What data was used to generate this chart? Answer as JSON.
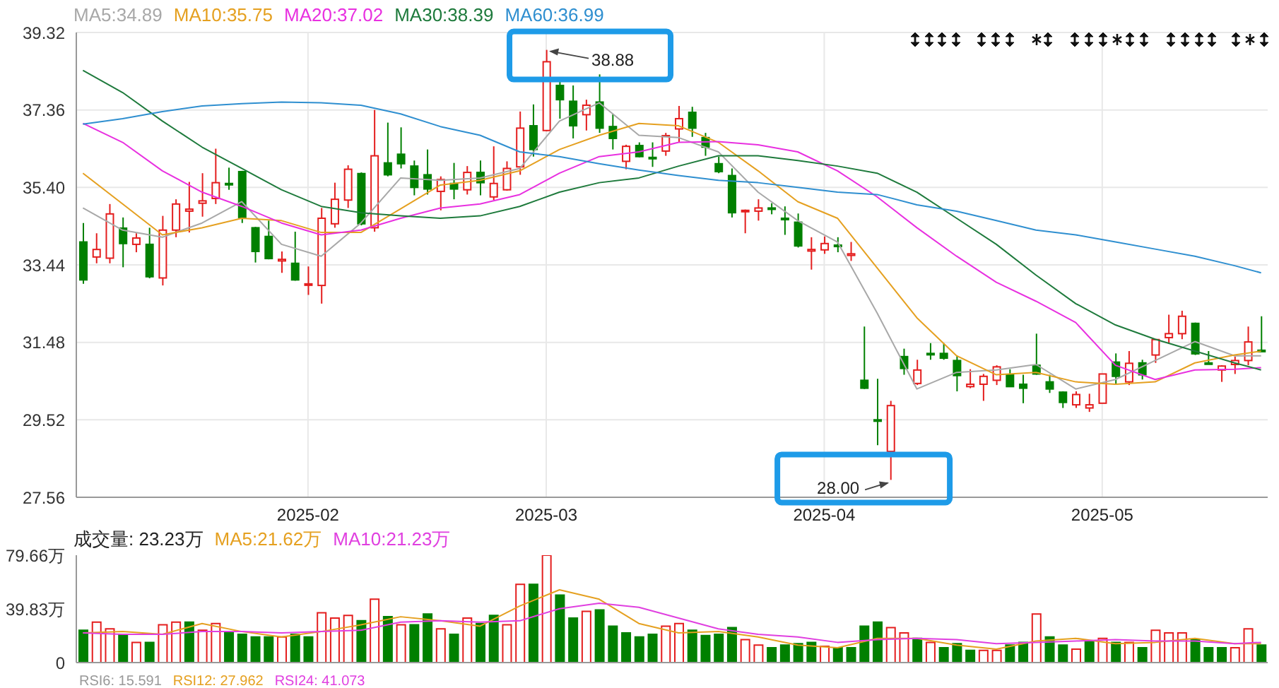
{
  "chart_data": [
    {
      "type": "candlestick",
      "categories": [
        null,
        null,
        null,
        null,
        null,
        null,
        null,
        null,
        null,
        null,
        null,
        null,
        null,
        null,
        null,
        null,
        null,
        "2025-02",
        null,
        null,
        null,
        null,
        null,
        null,
        null,
        null,
        null,
        null,
        null,
        null,
        null,
        null,
        null,
        null,
        null,
        "2025-03",
        null,
        null,
        null,
        null,
        null,
        null,
        null,
        null,
        null,
        null,
        null,
        null,
        null,
        null,
        null,
        null,
        null,
        null,
        null,
        null,
        "2025-04",
        null,
        null,
        null,
        null,
        null,
        null,
        null,
        null,
        null,
        null,
        null,
        null,
        null,
        null,
        null,
        null,
        null,
        null,
        null,
        null,
        "2025-05",
        null,
        null,
        null,
        null,
        null,
        null,
        null,
        null,
        null,
        null,
        null,
        null
      ],
      "ohlc": [
        [
          34.02,
          34.5,
          32.96,
          33.06
        ],
        [
          33.64,
          34.24,
          33.48,
          33.83
        ],
        [
          33.61,
          34.98,
          33.48,
          34.73
        ],
        [
          34.37,
          34.64,
          33.38,
          33.98
        ],
        [
          33.96,
          34.24,
          33.76,
          34.12
        ],
        [
          33.96,
          34.38,
          33.1,
          33.14
        ],
        [
          33.11,
          34.68,
          32.92,
          34.32
        ],
        [
          34.32,
          35.1,
          34.14,
          34.98
        ],
        [
          34.8,
          35.54,
          34.26,
          34.85
        ],
        [
          35.0,
          35.76,
          34.66,
          35.06
        ],
        [
          35.12,
          36.38,
          34.98,
          35.52
        ],
        [
          35.5,
          35.9,
          35.34,
          35.47
        ],
        [
          35.8,
          35.82,
          34.5,
          34.64
        ],
        [
          34.38,
          34.4,
          33.5,
          33.78
        ],
        [
          34.16,
          34.56,
          33.58,
          33.6
        ],
        [
          33.54,
          33.78,
          33.24,
          33.58
        ],
        [
          33.48,
          34.28,
          33.04,
          33.06
        ],
        [
          32.93,
          33.4,
          32.68,
          32.96
        ],
        [
          32.92,
          34.88,
          32.46,
          34.62
        ],
        [
          34.48,
          35.52,
          34.38,
          35.1
        ],
        [
          35.08,
          35.96,
          34.88,
          35.86
        ],
        [
          35.75,
          35.78,
          34.44,
          34.48
        ],
        [
          34.38,
          37.36,
          34.28,
          36.2
        ],
        [
          36.02,
          37.04,
          35.68,
          35.72
        ],
        [
          36.24,
          36.92,
          35.88,
          36.0
        ],
        [
          35.94,
          36.08,
          35.2,
          35.4
        ],
        [
          35.72,
          36.36,
          35.22,
          35.36
        ],
        [
          35.3,
          35.68,
          34.82,
          35.6
        ],
        [
          35.5,
          36.02,
          35.1,
          35.36
        ],
        [
          35.34,
          35.94,
          35.22,
          35.78
        ],
        [
          35.78,
          36.08,
          35.2,
          35.52
        ],
        [
          35.16,
          36.44,
          35.08,
          35.5
        ],
        [
          35.34,
          36.06,
          35.32,
          35.88
        ],
        [
          35.92,
          37.32,
          35.72,
          36.9
        ],
        [
          36.96,
          37.5,
          36.18,
          36.36
        ],
        [
          36.84,
          38.88,
          36.82,
          38.58
        ],
        [
          37.98,
          38.1,
          37.14,
          37.62
        ],
        [
          37.58,
          37.98,
          36.64,
          36.96
        ],
        [
          37.24,
          37.62,
          36.84,
          37.48
        ],
        [
          37.56,
          38.26,
          36.78,
          36.9
        ],
        [
          36.94,
          37.26,
          36.36,
          36.64
        ],
        [
          36.06,
          36.48,
          35.86,
          36.44
        ],
        [
          36.46,
          36.54,
          36.16,
          36.18
        ],
        [
          36.16,
          36.54,
          35.92,
          36.13
        ],
        [
          36.32,
          36.78,
          36.2,
          36.71
        ],
        [
          36.88,
          37.46,
          36.54,
          37.14
        ],
        [
          37.3,
          37.44,
          36.68,
          36.9
        ],
        [
          36.66,
          36.78,
          36.2,
          36.42
        ],
        [
          36.0,
          36.18,
          35.76,
          35.8
        ],
        [
          35.7,
          35.88,
          34.64,
          34.76
        ],
        [
          34.79,
          34.84,
          34.24,
          34.82
        ],
        [
          34.8,
          35.1,
          34.56,
          34.88
        ],
        [
          34.88,
          35.0,
          34.72,
          34.86
        ],
        [
          34.62,
          34.92,
          34.2,
          34.6
        ],
        [
          34.52,
          34.74,
          33.88,
          33.92
        ],
        [
          33.79,
          34.14,
          33.32,
          33.83
        ],
        [
          33.82,
          34.16,
          33.72,
          33.98
        ],
        [
          33.94,
          34.14,
          33.76,
          33.91
        ],
        [
          33.68,
          34.02,
          33.54,
          33.72
        ],
        [
          30.52,
          31.88,
          30.3,
          30.32
        ],
        [
          29.52,
          30.56,
          28.88,
          29.5
        ],
        [
          28.72,
          30.0,
          28.0,
          29.88
        ],
        [
          31.12,
          31.32,
          30.66,
          30.82
        ],
        [
          30.44,
          31.04,
          30.4,
          30.78
        ],
        [
          31.2,
          31.46,
          31.04,
          31.18
        ],
        [
          31.2,
          31.46,
          31.04,
          31.08
        ],
        [
          31.02,
          31.14,
          30.24,
          30.64
        ],
        [
          30.36,
          30.8,
          30.32,
          30.42
        ],
        [
          30.42,
          30.68,
          30.0,
          30.62
        ],
        [
          30.52,
          30.9,
          30.4,
          30.86
        ],
        [
          30.66,
          30.8,
          30.36,
          30.36
        ],
        [
          30.42,
          30.66,
          29.94,
          30.32
        ],
        [
          30.9,
          31.7,
          30.66,
          30.68
        ],
        [
          30.48,
          30.66,
          30.2,
          30.3
        ],
        [
          30.22,
          30.24,
          29.82,
          29.96
        ],
        [
          29.9,
          30.24,
          29.82,
          30.16
        ],
        [
          29.82,
          30.18,
          29.72,
          29.9
        ],
        [
          29.94,
          30.68,
          29.94,
          30.68
        ],
        [
          30.98,
          31.2,
          30.42,
          30.62
        ],
        [
          30.48,
          31.26,
          30.4,
          30.95
        ],
        [
          30.96,
          31.04,
          30.54,
          30.66
        ],
        [
          31.16,
          31.56,
          30.96,
          31.55
        ],
        [
          31.6,
          32.18,
          31.44,
          31.7
        ],
        [
          31.7,
          32.28,
          31.56,
          32.14
        ],
        [
          31.96,
          31.98,
          31.16,
          31.19
        ],
        [
          30.96,
          31.26,
          30.92,
          30.94
        ],
        [
          30.78,
          30.9,
          30.48,
          30.88
        ],
        [
          30.92,
          31.12,
          30.68,
          31.02
        ],
        [
          31.02,
          31.88,
          30.9,
          31.49
        ],
        [
          31.28,
          32.14,
          31.24,
          31.25
        ]
      ],
      "series": [
        {
          "type": "line",
          "name": "MA5:34.89",
          "color": "#a8a8a8",
          "values": [
            34.88,
            null,
            null,
            34.32,
            null,
            null,
            34.14,
            null,
            null,
            34.5,
            null,
            null,
            35.04,
            null,
            null,
            33.96,
            null,
            null,
            33.66,
            null,
            null,
            34.5,
            null,
            null,
            35.64,
            null,
            null,
            35.58,
            null,
            null,
            35.64,
            null,
            null,
            35.88,
            null,
            null,
            37.08,
            null,
            null,
            37.54,
            null,
            null,
            36.72,
            null,
            null,
            36.66,
            null,
            null,
            36.3,
            null,
            null,
            35.28,
            null,
            null,
            34.56,
            null,
            null,
            34.02,
            null,
            null,
            32.22,
            null,
            null,
            30.3,
            null,
            null,
            30.72,
            null,
            null,
            30.78,
            null,
            null,
            30.92,
            null,
            null,
            30.3,
            null,
            null,
            30.54,
            null,
            null,
            31.02,
            null,
            null,
            31.5,
            null,
            null,
            31.14,
            null,
            31.14
          ]
        },
        {
          "type": "line",
          "name": "MA10:35.75",
          "color": "#e5a020",
          "values": [
            35.76,
            null,
            null,
            34.98,
            null,
            null,
            34.2,
            null,
            null,
            34.38,
            null,
            null,
            34.62,
            null,
            null,
            34.56,
            null,
            null,
            34.26,
            null,
            null,
            34.26,
            null,
            null,
            34.86,
            null,
            null,
            35.46,
            null,
            null,
            35.58,
            null,
            null,
            35.82,
            null,
            null,
            36.36,
            null,
            null,
            36.72,
            null,
            null,
            37.02,
            null,
            null,
            36.96,
            null,
            null,
            36.54,
            null,
            null,
            35.82,
            null,
            null,
            35.04,
            null,
            null,
            34.62,
            null,
            null,
            33.36,
            null,
            null,
            32.1,
            null,
            null,
            31.14,
            null,
            null,
            30.66,
            null,
            null,
            30.72,
            null,
            null,
            30.48,
            null,
            null,
            30.42,
            null,
            null,
            30.48,
            null,
            null,
            30.96,
            null,
            null,
            31.16,
            null,
            31.26
          ]
        },
        {
          "type": "line",
          "name": "MA20:37.02",
          "color": "#e830e0",
          "values": [
            37.02,
            null,
            null,
            36.54,
            null,
            null,
            35.82,
            null,
            null,
            35.28,
            null,
            null,
            34.92,
            null,
            null,
            34.5,
            null,
            null,
            34.2,
            null,
            null,
            34.32,
            null,
            null,
            34.62,
            null,
            null,
            34.88,
            null,
            null,
            34.98,
            null,
            null,
            35.22,
            null,
            null,
            35.76,
            null,
            null,
            36.18,
            null,
            null,
            36.3,
            null,
            null,
            36.54,
            null,
            null,
            36.56,
            null,
            null,
            36.48,
            null,
            null,
            36.3,
            null,
            null,
            35.82,
            null,
            null,
            35.16,
            null,
            null,
            34.38,
            null,
            null,
            33.66,
            null,
            null,
            33.0,
            null,
            null,
            32.52,
            null,
            null,
            31.98,
            null,
            null,
            30.9,
            null,
            null,
            30.54,
            null,
            null,
            30.78,
            null,
            null,
            30.8,
            null,
            30.84
          ]
        },
        {
          "type": "line",
          "name": "MA30:38.39",
          "color": "#1e7a3c",
          "values": [
            38.36,
            null,
            null,
            37.8,
            null,
            null,
            37.08,
            null,
            null,
            36.42,
            null,
            null,
            35.88,
            null,
            null,
            35.34,
            null,
            null,
            34.92,
            null,
            null,
            34.76,
            null,
            null,
            34.68,
            null,
            null,
            34.62,
            null,
            null,
            34.68,
            null,
            null,
            34.92,
            null,
            null,
            35.28,
            null,
            null,
            35.52,
            null,
            null,
            35.64,
            null,
            null,
            35.94,
            null,
            null,
            36.2,
            null,
            null,
            36.2,
            null,
            null,
            36.08,
            null,
            null,
            35.94,
            null,
            null,
            35.76,
            null,
            null,
            35.28,
            null,
            null,
            34.62,
            null,
            null,
            33.96,
            null,
            null,
            33.18,
            null,
            null,
            32.46,
            null,
            null,
            31.92,
            null,
            null,
            31.56,
            null,
            null,
            31.26,
            null,
            null,
            30.96,
            null,
            30.78
          ]
        },
        {
          "type": "line",
          "name": "MA60:36.99",
          "color": "#2f8fd0",
          "values": [
            37.0,
            null,
            null,
            37.14,
            null,
            null,
            37.32,
            null,
            null,
            37.46,
            null,
            null,
            37.52,
            null,
            null,
            37.56,
            null,
            null,
            37.54,
            null,
            null,
            37.48,
            null,
            null,
            37.26,
            null,
            null,
            36.94,
            null,
            null,
            36.72,
            null,
            null,
            36.3,
            null,
            null,
            36.18,
            null,
            null,
            36.0,
            null,
            null,
            35.84,
            null,
            null,
            35.7,
            null,
            null,
            35.58,
            null,
            null,
            35.52,
            null,
            null,
            35.4,
            null,
            null,
            35.28,
            null,
            null,
            35.22,
            null,
            null,
            34.96,
            null,
            null,
            34.8,
            null,
            null,
            34.56,
            null,
            null,
            34.32,
            null,
            null,
            34.2,
            null,
            null,
            34.02,
            null,
            null,
            33.84,
            null,
            null,
            33.66,
            null,
            null,
            33.42,
            null,
            33.24
          ]
        }
      ],
      "ylim": [
        27.56,
        39.32
      ],
      "yticks": [
        27.56,
        29.52,
        31.48,
        33.44,
        {
          "value": 35.4,
          "label": "35.40"
        },
        37.36,
        39.32
      ],
      "grid": true,
      "legend": "top",
      "annotations": [
        "38.88",
        "28.00"
      ]
    },
    {
      "type": "bar",
      "title": "成交量: 23.23万",
      "categories": [
        null,
        null,
        null,
        null,
        null,
        null,
        null,
        null,
        null,
        null,
        null,
        null,
        null,
        null,
        null,
        null,
        null,
        "2025-02",
        null,
        null,
        null,
        null,
        null,
        null,
        null,
        null,
        null,
        null,
        null,
        null,
        null,
        null,
        null,
        null,
        null,
        "2025-03",
        null,
        null,
        null,
        null,
        null,
        null,
        null,
        null,
        null,
        null,
        null,
        null,
        null,
        null,
        null,
        null,
        null,
        null,
        null,
        null,
        "2025-04",
        null,
        null,
        null,
        null,
        null,
        null,
        null,
        null,
        null,
        null,
        null,
        null,
        null,
        null,
        null,
        null,
        null,
        null,
        null,
        null,
        "2025-05",
        null,
        null,
        null,
        null,
        null,
        null,
        null,
        null,
        null,
        null,
        null,
        null
      ],
      "series": [
        {
          "type": "bar",
          "values": [
            24,
            30,
            25,
            21,
            15,
            15,
            28,
            30,
            30,
            24,
            29,
            22,
            21,
            19,
            19,
            19,
            21,
            19,
            37,
            33,
            35,
            31,
            47,
            34,
            28,
            28,
            36,
            25,
            21,
            33,
            29,
            35,
            28,
            58,
            58,
            79.66,
            50,
            33,
            38,
            39,
            27,
            22,
            19,
            21,
            27,
            29,
            24,
            20,
            21,
            26,
            17,
            13,
            11,
            13,
            14,
            15,
            12,
            11,
            11,
            27,
            30,
            26,
            22,
            18,
            15,
            11,
            14,
            9,
            9,
            9,
            13,
            15,
            36,
            19,
            13,
            10,
            16,
            18,
            15,
            15,
            11,
            24,
            22,
            22,
            17,
            11,
            11,
            11,
            25,
            13
          ],
          "colors": [
            "#008000",
            "#e41e1e",
            "#e41e1e",
            "#008000",
            "#e41e1e",
            "#008000",
            "#e41e1e",
            "#e41e1e",
            "#008000",
            "#e41e1e",
            "#e41e1e",
            "#008000",
            "#008000",
            "#008000",
            "#008000",
            "#e41e1e",
            "#008000",
            "#008000",
            "#e41e1e",
            "#e41e1e",
            "#e41e1e",
            "#008000",
            "#e41e1e",
            "#008000",
            "#e41e1e",
            "#008000",
            "#008000",
            "#e41e1e",
            "#008000",
            "#e41e1e",
            "#008000",
            "#008000",
            "#e41e1e",
            "#e41e1e",
            "#008000",
            "#e41e1e",
            "#008000",
            "#008000",
            "#e41e1e",
            "#008000",
            "#008000",
            "#008000",
            "#008000",
            "#008000",
            "#e41e1e",
            "#e41e1e",
            "#008000",
            "#008000",
            "#008000",
            "#008000",
            "#e41e1e",
            "#e41e1e",
            "#008000",
            "#008000",
            "#008000",
            "#008000",
            "#e41e1e",
            "#008000",
            "#008000",
            "#008000",
            "#008000",
            "#e41e1e",
            "#e41e1e",
            "#008000",
            "#e41e1e",
            "#008000",
            "#008000",
            "#008000",
            "#e41e1e",
            "#e41e1e",
            "#008000",
            "#008000",
            "#e41e1e",
            "#008000",
            "#008000",
            "#e41e1e",
            "#008000",
            "#e41e1e",
            "#008000",
            "#e41e1e",
            "#008000",
            "#e41e1e",
            "#e41e1e",
            "#e41e1e",
            "#008000",
            "#008000",
            "#008000",
            "#e41e1e",
            "#e41e1e",
            "#008000"
          ]
        },
        {
          "type": "line",
          "name": "MA5:21.62万",
          "color": "#e5a020",
          "values": [
            22,
            null,
            null,
            23,
            null,
            null,
            21,
            null,
            null,
            29,
            null,
            null,
            23,
            null,
            null,
            19,
            null,
            null,
            23,
            null,
            null,
            28,
            null,
            null,
            34,
            null,
            null,
            31,
            null,
            null,
            27,
            null,
            null,
            42,
            null,
            null,
            54,
            null,
            null,
            47,
            null,
            null,
            29,
            null,
            null,
            22,
            null,
            null,
            23,
            null,
            null,
            19,
            null,
            null,
            13,
            null,
            null,
            11,
            null,
            null,
            18,
            null,
            null,
            18,
            null,
            null,
            13,
            null,
            null,
            10,
            null,
            null,
            16,
            null,
            null,
            18,
            null,
            null,
            14,
            null,
            null,
            15,
            null,
            null,
            18,
            null,
            null,
            14,
            null,
            14
          ]
        },
        {
          "type": "line",
          "name": "MA10:21.23万",
          "color": "#e040e0",
          "values": [
            22,
            null,
            null,
            21,
            null,
            null,
            21,
            null,
            null,
            23,
            null,
            null,
            23,
            null,
            null,
            22,
            null,
            null,
            23,
            null,
            null,
            24,
            null,
            null,
            30,
            null,
            null,
            31,
            null,
            null,
            30,
            null,
            null,
            31,
            null,
            null,
            40,
            null,
            null,
            44,
            null,
            null,
            41,
            null,
            null,
            33,
            null,
            null,
            25,
            null,
            null,
            21,
            null,
            null,
            19,
            null,
            null,
            15,
            null,
            null,
            17,
            null,
            null,
            18,
            null,
            null,
            17,
            null,
            null,
            14,
            null,
            null,
            15,
            null,
            null,
            16,
            null,
            null,
            17,
            null,
            null,
            16,
            null,
            null,
            16,
            null,
            null,
            14,
            null,
            15
          ]
        }
      ],
      "ylim": [
        0,
        79.66
      ],
      "yticks": [
        0,
        {
          "value": 39.83,
          "label": "39.83万"
        },
        {
          "value": 79.66,
          "label": "79.66万"
        }
      ],
      "tick_labels": "y",
      "legend": "top",
      "annotations": [
        "RSI6: 15.591",
        "RSI12: 27.962",
        "RSI24: 41.073"
      ]
    }
  ]
}
